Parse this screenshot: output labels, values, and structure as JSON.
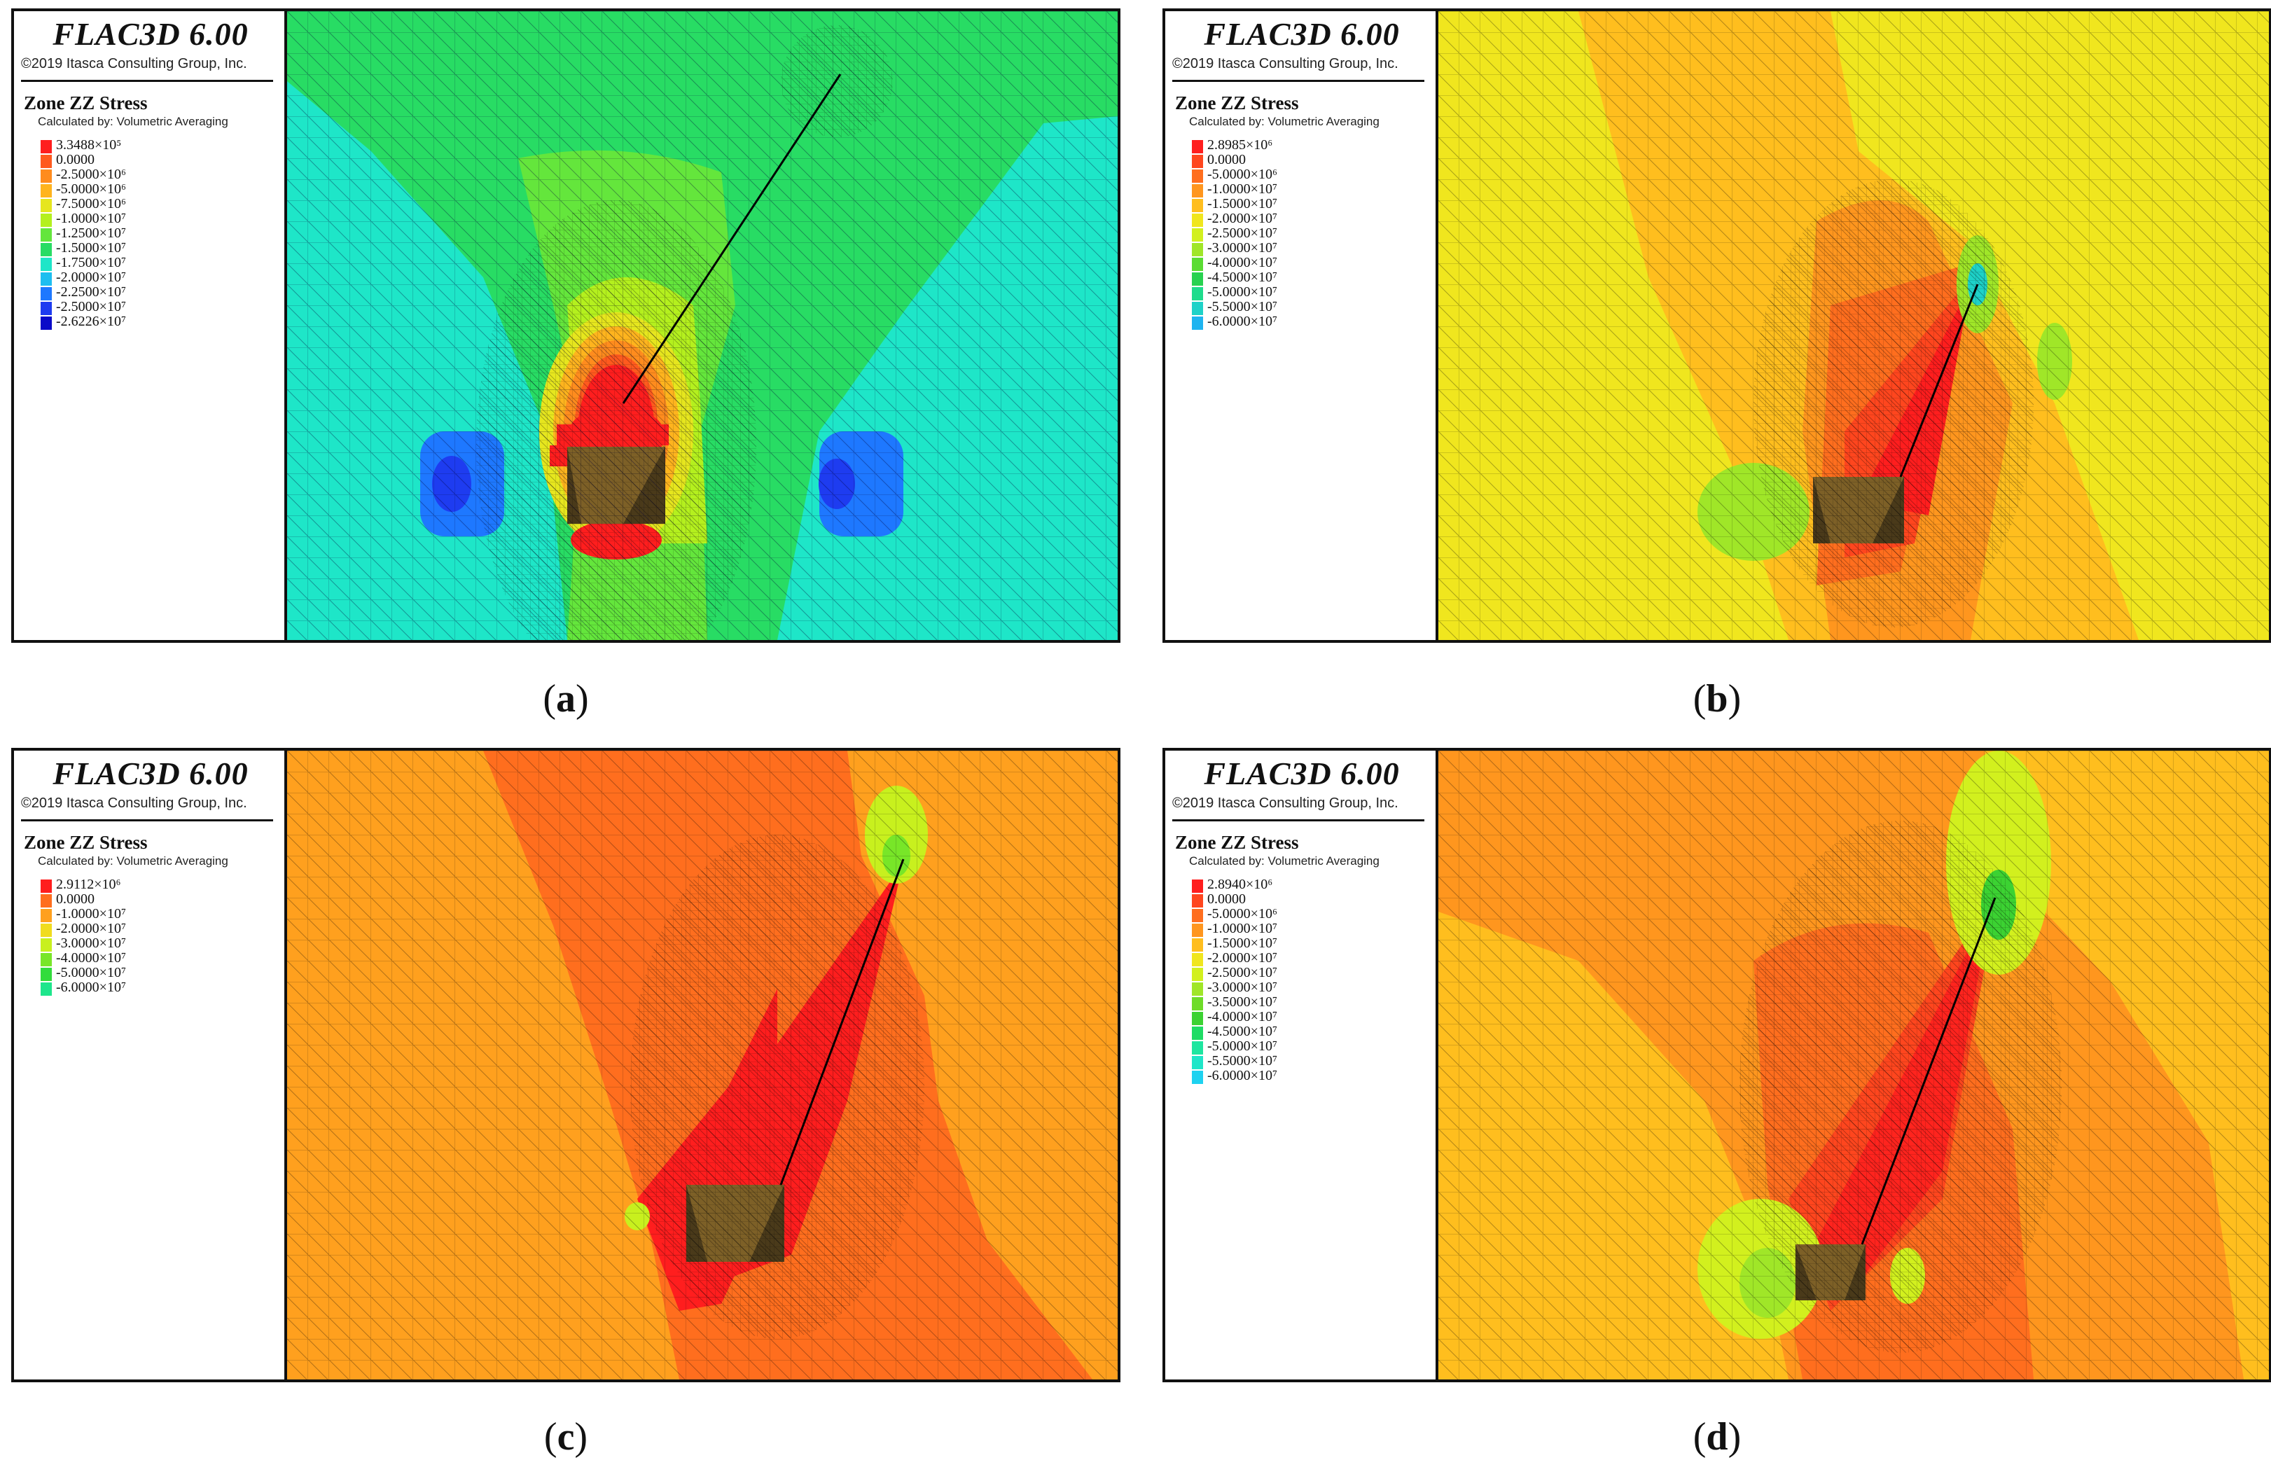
{
  "panels": [
    {
      "title": "FLAC3D 6.00",
      "copyright": "©2019 Itasca Consulting Group, Inc.",
      "plot_name": "Zone ZZ Stress",
      "calc_note": "Calculated by: Volumetric Averaging",
      "caption_letter": "a",
      "legend": [
        {
          "label": "3.3488×10⁵",
          "color": "#ff1e1e"
        },
        {
          "label": "0.0000",
          "color": "#ff5a1e"
        },
        {
          "label": "-2.5000×10⁶",
          "color": "#ff8c1e"
        },
        {
          "label": "-5.0000×10⁶",
          "color": "#ffb41e"
        },
        {
          "label": "-7.5000×10⁶",
          "color": "#e6e61e"
        },
        {
          "label": "-1.0000×10⁷",
          "color": "#b4f01e"
        },
        {
          "label": "-1.2500×10⁷",
          "color": "#64e63c"
        },
        {
          "label": "-1.5000×10⁷",
          "color": "#28dc64"
        },
        {
          "label": "-1.7500×10⁷",
          "color": "#1ee6c8"
        },
        {
          "label": "-2.0000×10⁷",
          "color": "#1ebef0"
        },
        {
          "label": "-2.2500×10⁷",
          "color": "#1e78ff"
        },
        {
          "label": "-2.5000×10⁷",
          "color": "#1e3cf0"
        },
        {
          "label": "-2.6226×10⁷",
          "color": "#0a0ac8"
        }
      ]
    },
    {
      "title": "FLAC3D 6.00",
      "copyright": "©2019 Itasca Consulting Group, Inc.",
      "plot_name": "Zone ZZ Stress",
      "calc_note": "Calculated by: Volumetric Averaging",
      "caption_letter": "b",
      "legend": [
        {
          "label": "2.8985×10⁶",
          "color": "#ff1e1e"
        },
        {
          "label": "0.0000",
          "color": "#ff461e"
        },
        {
          "label": "-5.0000×10⁶",
          "color": "#ff6e1e"
        },
        {
          "label": "-1.0000×10⁷",
          "color": "#ff961e"
        },
        {
          "label": "-1.5000×10⁷",
          "color": "#ffbe1e"
        },
        {
          "label": "-2.0000×10⁷",
          "color": "#f0e61e"
        },
        {
          "label": "-2.5000×10⁷",
          "color": "#d2f01e"
        },
        {
          "label": "-3.0000×10⁷",
          "color": "#a0e628"
        },
        {
          "label": "-4.0000×10⁷",
          "color": "#5adc32"
        },
        {
          "label": "-4.5000×10⁷",
          "color": "#28d250"
        },
        {
          "label": "-5.0000×10⁷",
          "color": "#1edc8c"
        },
        {
          "label": "-5.5000×10⁷",
          "color": "#1ed2c8"
        },
        {
          "label": "-6.0000×10⁷",
          "color": "#1eb4f0"
        }
      ]
    },
    {
      "title": "FLAC3D 6.00",
      "copyright": "©2019 Itasca Consulting Group, Inc.",
      "plot_name": "Zone ZZ Stress",
      "calc_note": "Calculated by: Volumetric Averaging",
      "caption_letter": "c",
      "legend": [
        {
          "label": "2.9112×10⁶",
          "color": "#ff1e1e"
        },
        {
          "label": "0.0000",
          "color": "#ff6e1e"
        },
        {
          "label": "-1.0000×10⁷",
          "color": "#ffa01e"
        },
        {
          "label": "-2.0000×10⁷",
          "color": "#f0dc1e"
        },
        {
          "label": "-3.0000×10⁷",
          "color": "#c8f01e"
        },
        {
          "label": "-4.0000×10⁷",
          "color": "#78e628"
        },
        {
          "label": "-5.0000×10⁷",
          "color": "#32dc3c"
        },
        {
          "label": "-6.0000×10⁷",
          "color": "#1ee68c"
        }
      ]
    },
    {
      "title": "FLAC3D 6.00",
      "copyright": "©2019 Itasca Consulting Group, Inc.",
      "plot_name": "Zone ZZ Stress",
      "calc_note": "Calculated by: Volumetric Averaging",
      "caption_letter": "d",
      "legend": [
        {
          "label": "2.8940×10⁶",
          "color": "#ff1e1e"
        },
        {
          "label": "0.0000",
          "color": "#ff461e"
        },
        {
          "label": "-5.0000×10⁶",
          "color": "#ff6e1e"
        },
        {
          "label": "-1.0000×10⁷",
          "color": "#ff961e"
        },
        {
          "label": "-1.5000×10⁷",
          "color": "#ffbe1e"
        },
        {
          "label": "-2.0000×10⁷",
          "color": "#f0e61e"
        },
        {
          "label": "-2.5000×10⁷",
          "color": "#d2f01e"
        },
        {
          "label": "-3.0000×10⁷",
          "color": "#a0e628"
        },
        {
          "label": "-3.5000×10⁷",
          "color": "#6edc28"
        },
        {
          "label": "-4.0000×10⁷",
          "color": "#3cd232"
        },
        {
          "label": "-4.5000×10⁷",
          "color": "#1edc64"
        },
        {
          "label": "-5.0000×10⁷",
          "color": "#1ee6a0"
        },
        {
          "label": "-5.5000×10⁷",
          "color": "#1ee6c8"
        },
        {
          "label": "-6.0000×10⁷",
          "color": "#1ed2f0"
        }
      ]
    }
  ]
}
